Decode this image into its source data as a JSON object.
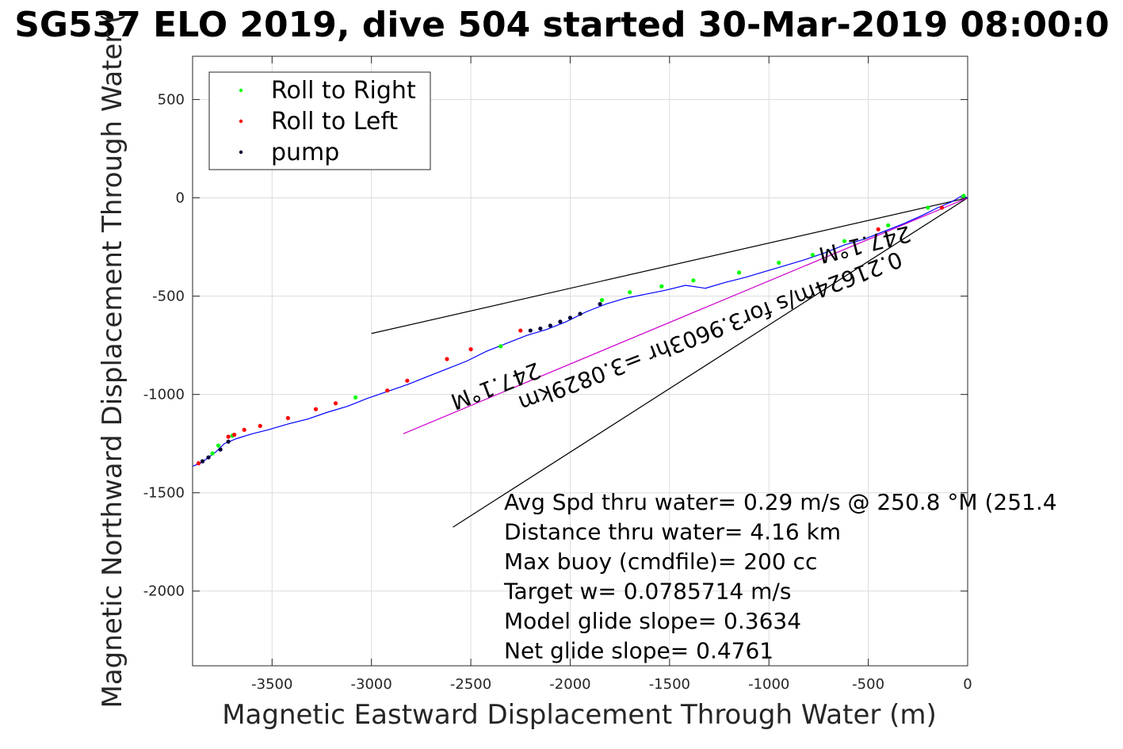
{
  "chart_data": {
    "type": "line",
    "title": "SG537 ELO 2019, dive 504 started 30-Mar-2019 08:00:0",
    "xlabel": "Magnetic Eastward Displacement Through Water (m)",
    "ylabel": "Magnetic Northward Displacement Through Water (",
    "xlim": [
      -3900,
      0
    ],
    "ylim": [
      -2380,
      720
    ],
    "xticks": [
      -3500,
      -3000,
      -2500,
      -2000,
      -1500,
      -1000,
      -500,
      0
    ],
    "yticks": [
      500,
      0,
      -500,
      -1000,
      -1500,
      -2000
    ],
    "xtick_labels": [
      "-3500",
      "-3000",
      "-2500",
      "-2000",
      "-1500",
      "-1000",
      "-500",
      "0"
    ],
    "ytick_labels": [
      "500",
      "0",
      "-500",
      "-1000",
      "-1500",
      "-2000"
    ],
    "grid": true,
    "legend": {
      "placement": "top-left",
      "entries": [
        {
          "label": "Roll to Right",
          "color": "#00ff00"
        },
        {
          "label": "Roll to Left",
          "color": "#ff0000"
        },
        {
          "label": "pump",
          "color": "#000033"
        }
      ]
    },
    "track": {
      "name": "",
      "color": "#0000ff",
      "x": [
        0,
        -30,
        -80,
        -150,
        -230,
        -320,
        -420,
        -520,
        -620,
        -720,
        -820,
        -920,
        -1020,
        -1120,
        -1220,
        -1320,
        -1420,
        -1520,
        -1620,
        -1720,
        -1820,
        -1920,
        -2020,
        -2120,
        -2220,
        -2320,
        -2420,
        -2520,
        -2620,
        -2720,
        -2820,
        -2920,
        -3020,
        -3120,
        -3220,
        -3320,
        -3420,
        -3520,
        -3600,
        -3680,
        -3740,
        -3780,
        -3820,
        -3860,
        -3900
      ],
      "y": [
        0,
        10,
        -20,
        -50,
        -90,
        -130,
        -170,
        -210,
        -240,
        -280,
        -315,
        -345,
        -375,
        -405,
        -430,
        -460,
        -445,
        -470,
        -490,
        -510,
        -540,
        -580,
        -630,
        -670,
        -700,
        -740,
        -780,
        -830,
        -870,
        -910,
        -950,
        -985,
        -1020,
        -1060,
        -1090,
        -1125,
        -1150,
        -1180,
        -1200,
        -1225,
        -1250,
        -1290,
        -1320,
        -1350,
        -1365
      ]
    },
    "roll_right_points": {
      "x": [
        -20,
        -200,
        -400,
        -620,
        -780,
        -950,
        -1150,
        -1380,
        -1540,
        -1700,
        -1840,
        -2350,
        -3080,
        -3700,
        -3770,
        -3800
      ],
      "y": [
        10,
        -50,
        -140,
        -220,
        -290,
        -330,
        -380,
        -420,
        -450,
        -480,
        -520,
        -755,
        -1015,
        -1210,
        -1260,
        -1300
      ]
    },
    "roll_left_points": {
      "x": [
        -130,
        -450,
        -2250,
        -2500,
        -2620,
        -2820,
        -2920,
        -3180,
        -3280,
        -3420,
        -3560,
        -3640,
        -3690,
        -3720,
        -3870
      ],
      "y": [
        -50,
        -160,
        -675,
        -770,
        -820,
        -930,
        -980,
        -1045,
        -1075,
        -1120,
        -1160,
        -1180,
        -1205,
        -1215,
        -1350
      ]
    },
    "pump_points": {
      "x": [
        -1850,
        -1950,
        -2000,
        -2050,
        -2100,
        -2150,
        -2200,
        -3720,
        -3760,
        -3820,
        -3850
      ],
      "y": [
        -540,
        -590,
        -610,
        -630,
        -650,
        -665,
        -675,
        -1240,
        -1280,
        -1320,
        -1340
      ]
    },
    "direction_lines": [
      {
        "name": "",
        "color": "#000000",
        "x": [
          0,
          -3000
        ],
        "y": [
          0,
          -690
        ]
      },
      {
        "name": "",
        "color": "#000000",
        "x": [
          0,
          -2590
        ],
        "y": [
          0,
          -1675
        ]
      },
      {
        "name": "",
        "color": "#cc00cc",
        "x": [
          0,
          -2840
        ],
        "y": [
          0,
          -1200
        ]
      }
    ],
    "line_labels": [
      {
        "text": "247.1°M",
        "rotation": 180
      },
      {
        "text": "0.21624m/s for3.9603hr =3.0829km",
        "rotation": 180
      },
      {
        "text": "247.1°M",
        "rotation": 180
      }
    ],
    "annotations": [
      "Avg Spd thru water=  0.29 m/s @ 250.8 °M (251.4",
      "Distance thru water=  4.16 km",
      "Max buoy (cmdfile)= 200 cc",
      "Target w= 0.0785714 m/s",
      "Model glide slope= 0.3634",
      "Net glide slope= 0.4761"
    ]
  }
}
